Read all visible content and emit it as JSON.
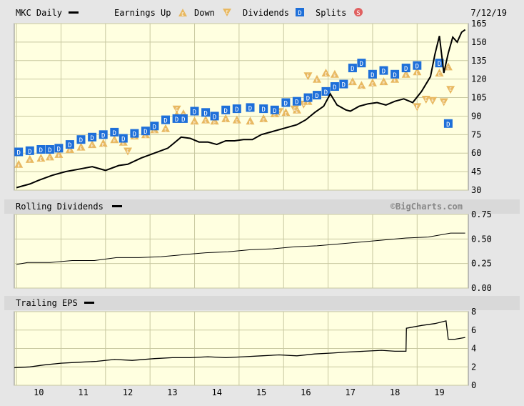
{
  "header": {
    "symbol_label": "MKC Daily",
    "earnings_up_label": "Earnings Up",
    "down_label": "Down",
    "dividends_label": "Dividends",
    "splits_label": "Splits",
    "date": "7/12/19"
  },
  "watermark": "©BigCharts.com",
  "colors": {
    "background": "#e6e6e6",
    "plot_fill": "#ffffe0",
    "grid": "#c8c8a0",
    "line": "#000000",
    "earnings_marker": "#e8b860",
    "dividend_marker": "#1e6fd9",
    "split_marker": "#e06060"
  },
  "icons": {
    "earnings_up": "triangle-up-E",
    "earnings_down": "triangle-down-E",
    "dividend": "square-D",
    "split": "circle-S"
  },
  "chart_data": [
    {
      "type": "line",
      "title": "MKC Daily",
      "x_ticks": [
        "10",
        "11",
        "12",
        "13",
        "14",
        "15",
        "16",
        "17",
        "18",
        "19"
      ],
      "xlim": [
        2009.45,
        2019.65
      ],
      "ylim": [
        30,
        165
      ],
      "y_ticks": [
        30,
        45,
        60,
        75,
        90,
        105,
        120,
        135,
        150,
        165
      ],
      "grid": true,
      "series": [
        {
          "name": "MKC Daily",
          "x": [
            2009.5,
            2009.8,
            2010.0,
            2010.3,
            2010.6,
            2010.9,
            2011.2,
            2011.5,
            2011.8,
            2012.0,
            2012.3,
            2012.6,
            2012.9,
            2013.0,
            2013.2,
            2013.4,
            2013.6,
            2013.8,
            2014.0,
            2014.2,
            2014.4,
            2014.6,
            2014.8,
            2015.0,
            2015.2,
            2015.5,
            2015.8,
            2016.0,
            2016.2,
            2016.4,
            2016.55,
            2016.7,
            2016.9,
            2017.0,
            2017.2,
            2017.4,
            2017.6,
            2017.8,
            2018.0,
            2018.2,
            2018.4,
            2018.6,
            2018.8,
            2018.9,
            2019.0,
            2019.1,
            2019.2,
            2019.3,
            2019.4,
            2019.5,
            2019.58
          ],
          "y": [
            32,
            35,
            38,
            42,
            45,
            47,
            49,
            46,
            50,
            51,
            56,
            60,
            64,
            67,
            73,
            72,
            69,
            69,
            67,
            70,
            70,
            71,
            71,
            75,
            77,
            80,
            83,
            87,
            93,
            98,
            108,
            99,
            95,
            94,
            98,
            100,
            101,
            99,
            102,
            104,
            101,
            110,
            122,
            140,
            155,
            125,
            141,
            154,
            150,
            158,
            160
          ]
        }
      ]
    },
    {
      "type": "line",
      "title": "Rolling Dividends",
      "ylim": [
        0,
        0.75
      ],
      "y_ticks": [
        "0.00",
        "0.25",
        "0.50",
        "0.75"
      ],
      "grid": true,
      "series": [
        {
          "name": "Rolling Dividends",
          "x": [
            2009.5,
            2009.75,
            2010.25,
            2010.75,
            2011.25,
            2011.75,
            2012.25,
            2012.75,
            2013.25,
            2013.75,
            2014.25,
            2014.75,
            2015.25,
            2015.75,
            2016.25,
            2016.75,
            2017.25,
            2017.75,
            2018.25,
            2018.75,
            2019.25,
            2019.58
          ],
          "y": [
            0.24,
            0.26,
            0.26,
            0.28,
            0.28,
            0.31,
            0.31,
            0.32,
            0.34,
            0.36,
            0.37,
            0.39,
            0.4,
            0.42,
            0.43,
            0.45,
            0.47,
            0.49,
            0.51,
            0.52,
            0.56,
            0.56
          ]
        }
      ]
    },
    {
      "type": "line",
      "title": "Trailing EPS",
      "ylim": [
        0,
        8
      ],
      "y_ticks": [
        "0",
        "2",
        "4",
        "6",
        "8"
      ],
      "grid": true,
      "series": [
        {
          "name": "Trailing EPS",
          "x": [
            2009.45,
            2009.8,
            2010.1,
            2010.5,
            2010.9,
            2011.3,
            2011.7,
            2012.1,
            2012.6,
            2013.0,
            2013.4,
            2013.8,
            2014.2,
            2014.6,
            2015.0,
            2015.4,
            2015.8,
            2016.2,
            2016.6,
            2016.9,
            2017.3,
            2017.7,
            2018.0,
            2018.25,
            2018.26,
            2018.6,
            2018.9,
            2019.15,
            2019.2,
            2019.35,
            2019.58
          ],
          "y": [
            1.9,
            2.0,
            2.2,
            2.4,
            2.5,
            2.6,
            2.8,
            2.7,
            2.9,
            3.0,
            3.0,
            3.1,
            3.0,
            3.1,
            3.2,
            3.3,
            3.2,
            3.4,
            3.5,
            3.6,
            3.7,
            3.8,
            3.7,
            3.7,
            6.2,
            6.5,
            6.7,
            7.0,
            5.0,
            5.0,
            5.2
          ]
        }
      ]
    }
  ],
  "markers": {
    "dividends": {
      "x": [
        2009.55,
        2009.8,
        2010.05,
        2010.25,
        2010.45,
        2010.7,
        2010.95,
        2011.2,
        2011.45,
        2011.7,
        2011.9,
        2012.15,
        2012.4,
        2012.6,
        2012.85,
        2013.1,
        2013.25,
        2013.5,
        2013.75,
        2013.95,
        2014.2,
        2014.45,
        2014.75,
        2015.05,
        2015.3,
        2015.55,
        2015.8,
        2016.05,
        2016.25,
        2016.45,
        2016.65,
        2016.85,
        2017.05,
        2017.25,
        2017.5,
        2017.75,
        2018.0,
        2018.25,
        2018.5,
        2019.0,
        2019.2
      ],
      "y": [
        61,
        62,
        63,
        63,
        64,
        67,
        71,
        73,
        75,
        77,
        72,
        76,
        78,
        82,
        87,
        88,
        88,
        94,
        93,
        90,
        95,
        96,
        97,
        96,
        95,
        101,
        102,
        105,
        107,
        110,
        114,
        116,
        129,
        133,
        124,
        127,
        124,
        129,
        131,
        133,
        84
      ]
    },
    "earnings_up": {
      "x": [
        2009.55,
        2009.8,
        2010.05,
        2010.25,
        2010.45,
        2010.7,
        2010.95,
        2011.2,
        2011.45,
        2011.7,
        2011.9,
        2012.15,
        2012.4,
        2012.6,
        2012.85,
        2013.1,
        2013.25,
        2013.5,
        2013.75,
        2013.95,
        2014.2,
        2014.45,
        2014.75,
        2015.05,
        2015.3,
        2015.55,
        2015.8,
        2016.05,
        2016.25,
        2016.45,
        2016.65,
        2016.85,
        2017.05,
        2017.25,
        2017.5,
        2017.75,
        2018.0,
        2018.25,
        2018.5,
        2019.0,
        2019.2
      ],
      "y": [
        51,
        55,
        56,
        57,
        59,
        63,
        65,
        67,
        68,
        71,
        69,
        74,
        75,
        79,
        80,
        91,
        92,
        86,
        87,
        86,
        88,
        87,
        86,
        88,
        92,
        93,
        95,
        102,
        120,
        125,
        124,
        116,
        118,
        115,
        117,
        118,
        120,
        124,
        126,
        125,
        130
      ]
    },
    "earnings_down": {
      "x": [
        2012.0,
        2013.1,
        2015.4,
        2015.75,
        2015.95,
        2016.05,
        2018.5,
        2018.7,
        2018.85,
        2019.1,
        2019.25
      ],
      "y": [
        61,
        95,
        93,
        95,
        99,
        122,
        97,
        103,
        102,
        101,
        111
      ]
    },
    "splits": {
      "x": [],
      "y": []
    }
  }
}
